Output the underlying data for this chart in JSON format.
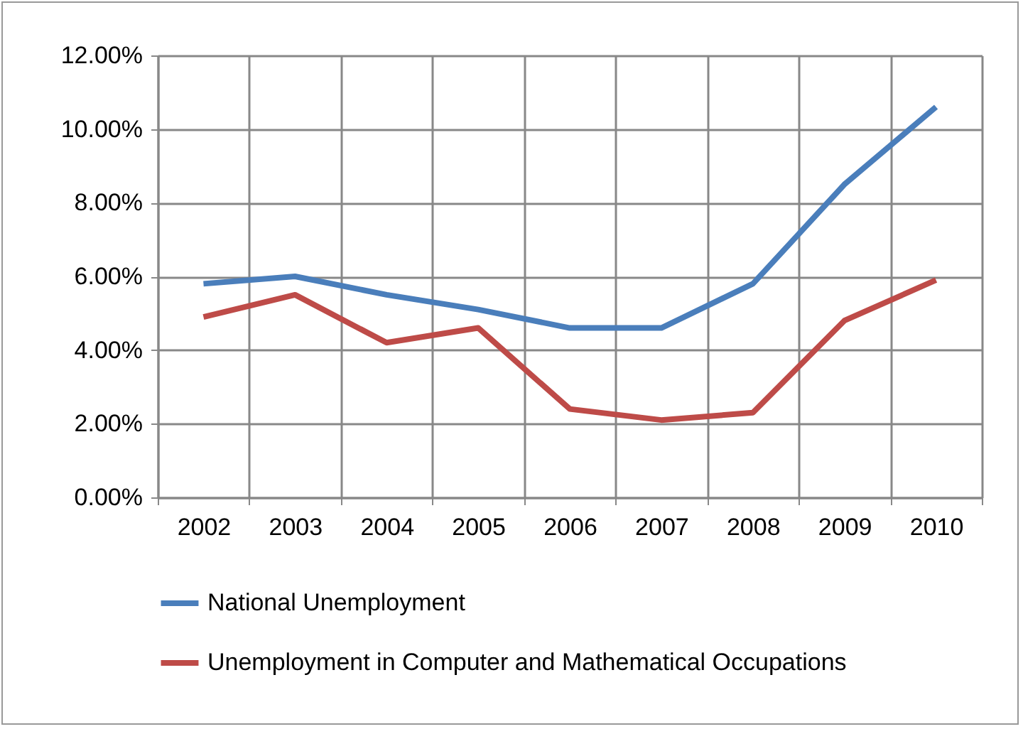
{
  "chart_data": {
    "type": "line",
    "categories": [
      "2002",
      "2003",
      "2004",
      "2005",
      "2006",
      "2007",
      "2008",
      "2009",
      "2010"
    ],
    "series": [
      {
        "name": "National Unemployment",
        "color": "#4a7ebb",
        "values": [
          5.8,
          6.0,
          5.5,
          5.1,
          4.6,
          4.6,
          5.8,
          8.5,
          10.6
        ]
      },
      {
        "name": "Unemployment in Computer and Mathematical Occupations",
        "color": "#be4b48",
        "values": [
          4.9,
          5.5,
          4.2,
          4.6,
          2.4,
          2.1,
          2.3,
          4.8,
          5.9
        ]
      }
    ],
    "ylim": [
      0,
      12
    ],
    "yticks": [
      {
        "value": 0,
        "label": "0.00%"
      },
      {
        "value": 2,
        "label": "2.00%"
      },
      {
        "value": 4,
        "label": "4.00%"
      },
      {
        "value": 6,
        "label": "6.00%"
      },
      {
        "value": 8,
        "label": "8.00%"
      },
      {
        "value": 10,
        "label": "10.00%"
      },
      {
        "value": 12,
        "label": "12.00%"
      }
    ],
    "grid": true,
    "legend": "bottom",
    "marker": "none",
    "line_style": "solid"
  }
}
